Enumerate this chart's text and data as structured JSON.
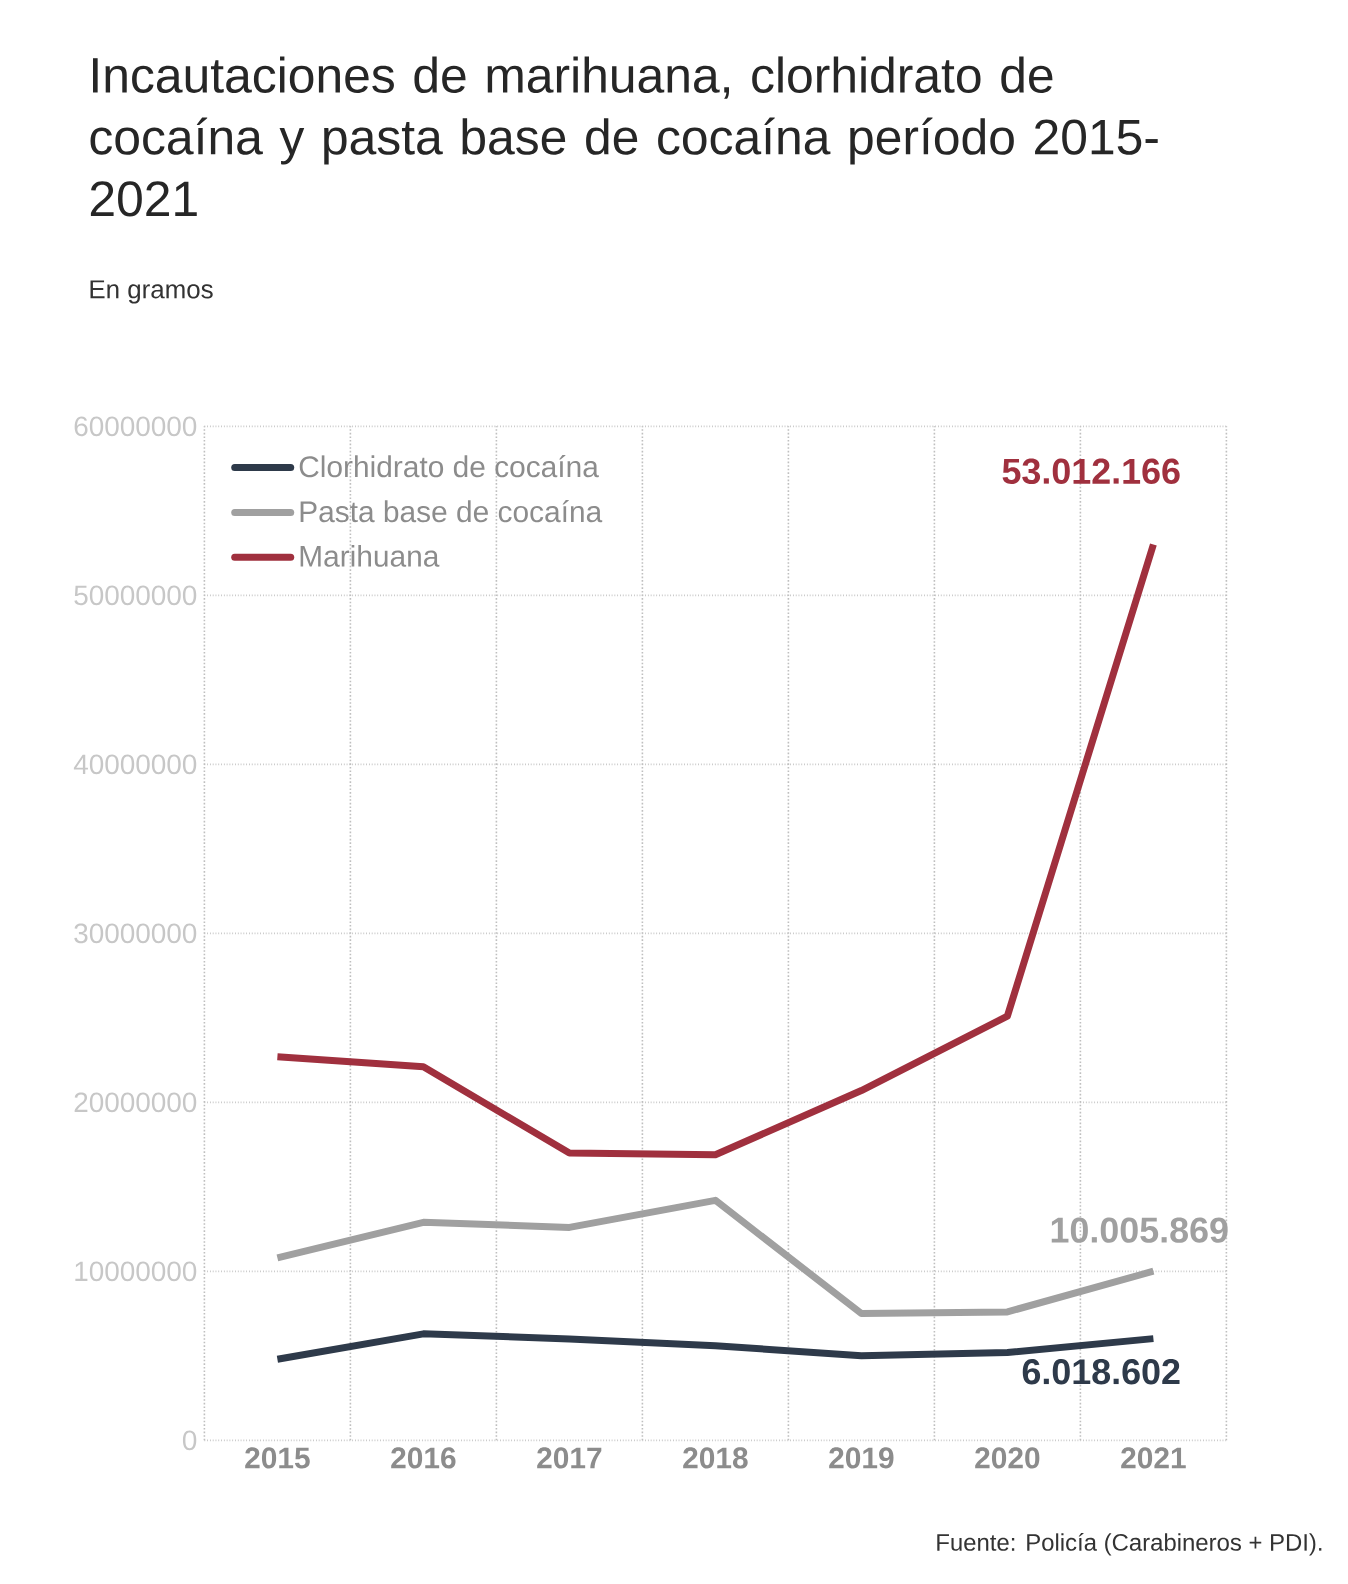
{
  "chart_data": {
    "type": "line",
    "title": "Incautaciones de marihuana, clorhidrato de cocaína y pasta base de cocaína período 2015-2021",
    "subtitle": "En gramos",
    "categories": [
      "2015",
      "2016",
      "2017",
      "2018",
      "2019",
      "2020",
      "2021"
    ],
    "series": [
      {
        "name": "Clorhidrato de cocaína",
        "color": "#2e3a4a",
        "values": [
          4800000,
          6300000,
          6000000,
          5600000,
          5000000,
          5200000,
          6018602
        ],
        "value_labels": [
          null,
          null,
          null,
          null,
          null,
          null,
          "6.018.602"
        ]
      },
      {
        "name": "Pasta base de cocaína",
        "color": "#a0a0a0",
        "values": [
          10800000,
          12900000,
          12600000,
          14200000,
          7500000,
          7600000,
          10005869
        ],
        "value_labels": [
          null,
          null,
          null,
          null,
          null,
          null,
          "10.005.869"
        ]
      },
      {
        "name": "Marihuana",
        "color": "#a0303e",
        "values": [
          22700000,
          22100000,
          17000000,
          16900000,
          20700000,
          25100000,
          53012166
        ],
        "value_labels": [
          null,
          null,
          null,
          null,
          null,
          null,
          "53.012.166"
        ]
      }
    ],
    "ylim": [
      0,
      60000000
    ],
    "yticks": [
      0,
      10000000,
      20000000,
      30000000,
      40000000,
      50000000,
      60000000
    ],
    "grid": true,
    "legend": "top left",
    "marker": "none",
    "line_style": "solid",
    "annotations": [
      "Fuente: Policía (Carabineros + PDI)."
    ]
  }
}
